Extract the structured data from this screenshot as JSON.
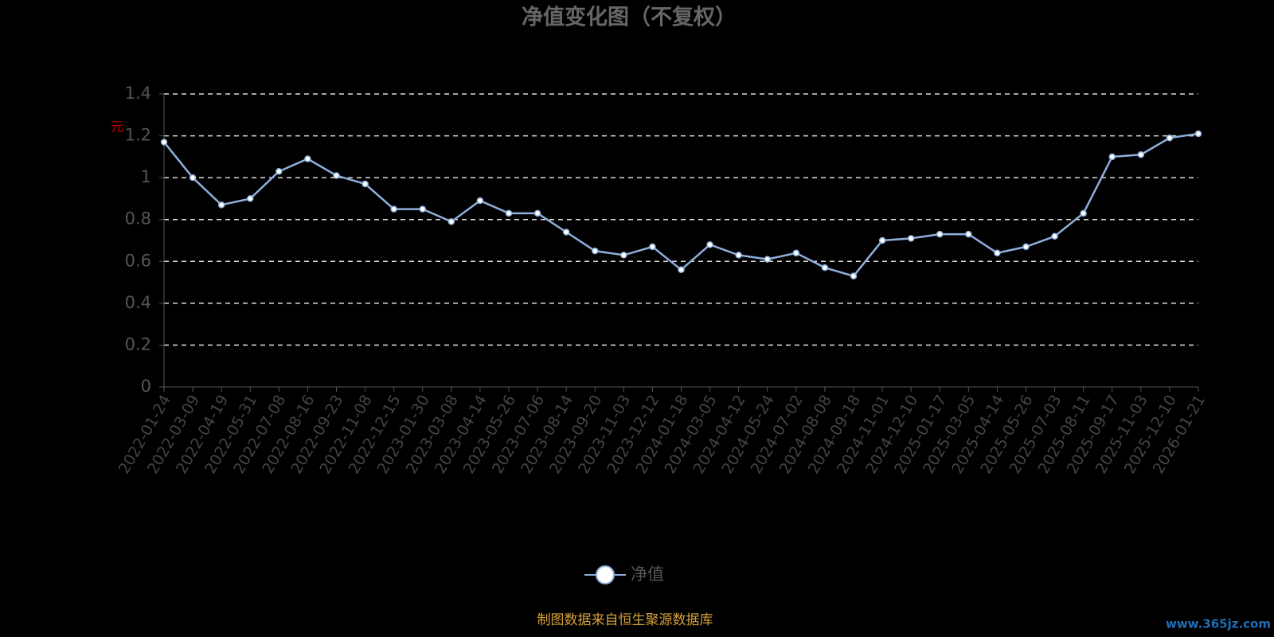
{
  "chart_data": {
    "type": "line",
    "title": "净值变化图（不复权）",
    "y_label": "元",
    "categories": [
      "2022-01-24",
      "2022-03-09",
      "2022-04-19",
      "2022-05-31",
      "2022-07-08",
      "2022-08-16",
      "2022-09-23",
      "2022-11-08",
      "2022-12-15",
      "2023-01-30",
      "2023-03-08",
      "2023-04-14",
      "2023-05-26",
      "2023-07-06",
      "2023-08-14",
      "2023-09-20",
      "2023-11-03",
      "2023-12-12",
      "2024-01-18",
      "2024-03-05",
      "2024-04-12",
      "2024-05-24",
      "2024-07-02",
      "2024-08-08",
      "2024-09-18",
      "2024-11-01",
      "2024-12-10",
      "2025-01-17",
      "2025-03-05",
      "2025-04-14",
      "2025-05-26",
      "2025-07-03",
      "2025-08-11",
      "2025-09-17",
      "2025-11-03",
      "2025-12-10",
      "2026-01-21"
    ],
    "series": [
      {
        "name": "净值",
        "color": "#8fb0dc",
        "values": [
          1.17,
          1.0,
          0.87,
          0.9,
          1.03,
          1.09,
          1.01,
          0.97,
          0.85,
          0.85,
          0.79,
          0.89,
          0.83,
          0.83,
          0.74,
          0.65,
          0.63,
          0.67,
          0.56,
          0.68,
          0.63,
          0.61,
          0.64,
          0.57,
          0.53,
          0.7,
          0.71,
          0.73,
          0.73,
          0.64,
          0.67,
          0.72,
          0.83,
          1.1,
          1.11,
          1.19,
          1.21
        ]
      }
    ],
    "ylim": [
      0,
      1.4
    ],
    "yticks": [
      0,
      0.2,
      0.4,
      0.6,
      0.8,
      1,
      1.2,
      1.4
    ],
    "grid": true
  },
  "footer": "制图数据来自恒生聚源数据库",
  "watermark": "www.365jz.com"
}
